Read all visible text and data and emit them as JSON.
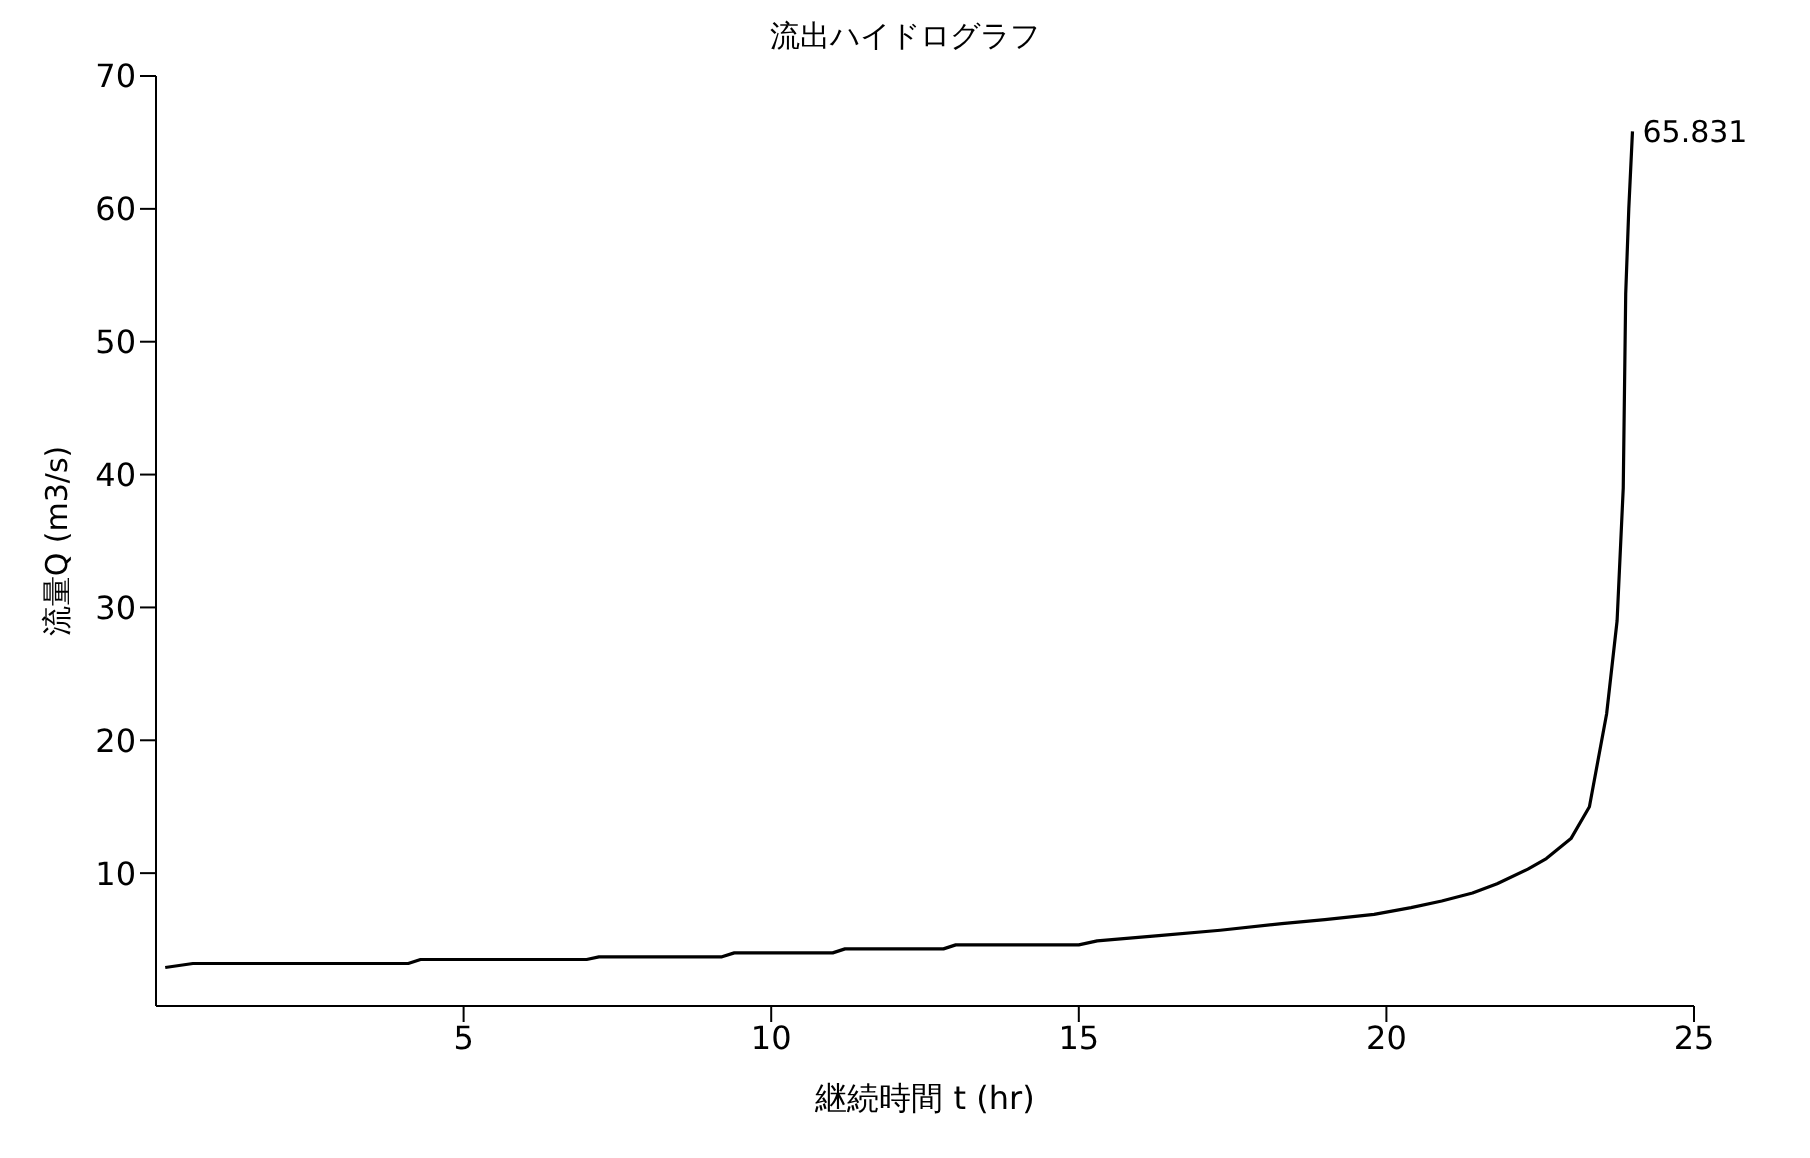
{
  "chart_data": {
    "type": "line",
    "title": "流出ハイドログラフ",
    "xlabel": "継続時間 t (hr)",
    "ylabel": "流量Q (m3/s)",
    "xlim": [
      0,
      25
    ],
    "xticks": [
      5,
      10,
      15,
      20,
      25
    ],
    "ylim": [
      0,
      70
    ],
    "yticks": [
      10,
      20,
      30,
      40,
      50,
      60,
      70
    ],
    "annotations": [
      {
        "text": "65.831",
        "x": 24,
        "y": 65.831
      }
    ],
    "series": [
      {
        "color": "#000000",
        "x": [
          0.15,
          0.6,
          4.1,
          4.3,
          7.0,
          7.2,
          9.2,
          9.4,
          11.0,
          11.2,
          12.8,
          13.0,
          15.0,
          15.3,
          16.3,
          17.3,
          18.3,
          19.0,
          19.8,
          20.4,
          20.9,
          21.4,
          21.8,
          22.3,
          22.6,
          23.0,
          23.3,
          23.58,
          23.75,
          23.85,
          23.89,
          23.94,
          24.0
        ],
        "values": [
          2.9,
          3.2,
          3.2,
          3.5,
          3.5,
          3.7,
          3.7,
          4.0,
          4.0,
          4.3,
          4.3,
          4.6,
          4.6,
          4.9,
          5.3,
          5.7,
          6.2,
          6.5,
          6.9,
          7.4,
          7.9,
          8.5,
          9.2,
          10.3,
          11.1,
          12.6,
          15.0,
          22,
          29,
          39,
          53.6,
          60,
          65.831
        ]
      }
    ]
  }
}
